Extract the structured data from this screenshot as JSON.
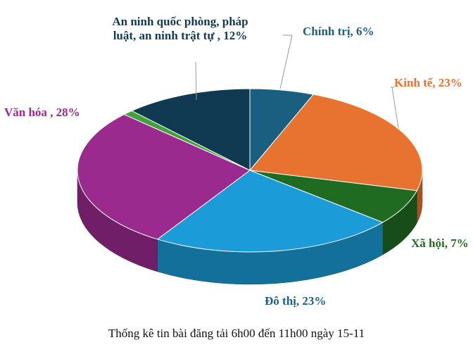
{
  "chart_data": {
    "type": "pie",
    "style": "3d",
    "title": "Thống kê tin bài đăng tải 6h00 đến 11h00 ngày 15-11",
    "legend": "none",
    "slices": [
      {
        "label": "Chính trị, 6%",
        "value": 6,
        "color": "#1a5e80"
      },
      {
        "label": "Kinh tế, 23%",
        "value": 23,
        "color": "#e8722f"
      },
      {
        "label": "Xã hội, 7%",
        "value": 7,
        "color": "#1f6b22"
      },
      {
        "label": "Đô thị, 23%",
        "value": 23,
        "color": "#1b9bd7"
      },
      {
        "label": "Văn hóa , 28%",
        "value": 28,
        "color": "#9b2a8f"
      },
      {
        "label": "",
        "value": 1,
        "color": "#3fa33a"
      },
      {
        "label": "An ninh quốc phòng, pháp luật, an ninh trật tự , 12%",
        "value": 12,
        "color": "#0f3a52"
      }
    ],
    "label_colors": {
      "Chính trị": "#1a5e80",
      "Kinh tế": "#e8722f",
      "Xã hội": "#1f6b22",
      "Đô thị": "#1a5e80",
      "Văn hóa": "#9b2a8f",
      "An ninh": "#123a52"
    }
  }
}
